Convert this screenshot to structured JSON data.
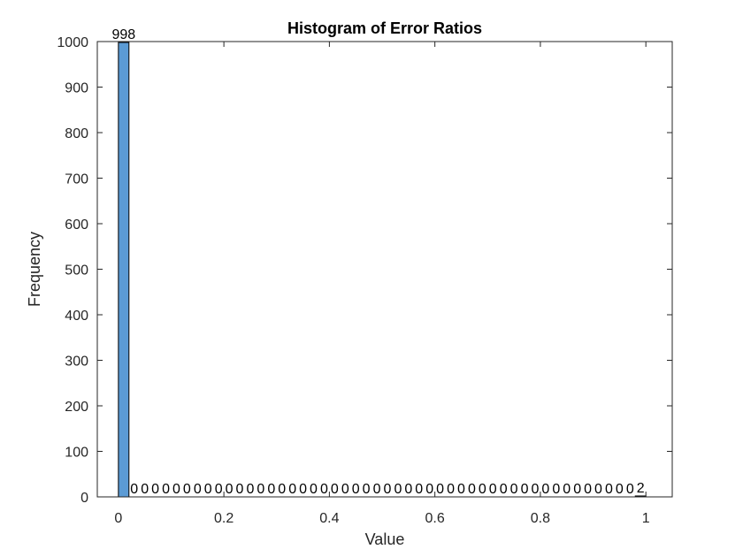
{
  "chart_data": {
    "type": "bar",
    "title": "Histogram of Error Ratios",
    "xlabel": "Value",
    "ylabel": "Frequency",
    "xlim": [
      -0.04,
      1.05
    ],
    "ylim": [
      0,
      1000
    ],
    "xticks": [
      0,
      0.2,
      0.4,
      0.6,
      0.8,
      1
    ],
    "xtick_labels": [
      "0",
      "0.2",
      "0.4",
      "0.6",
      "0.8",
      "1"
    ],
    "yticks": [
      0,
      100,
      200,
      300,
      400,
      500,
      600,
      700,
      800,
      900,
      1000
    ],
    "ytick_labels": [
      "0",
      "100",
      "200",
      "300",
      "400",
      "500",
      "600",
      "700",
      "800",
      "900",
      "1000"
    ],
    "bin_edges": [
      0,
      0.02,
      0.04,
      0.06,
      0.08,
      0.1,
      0.12,
      0.14,
      0.16,
      0.18,
      0.2,
      0.22,
      0.24,
      0.26,
      0.28,
      0.3,
      0.32,
      0.34,
      0.36,
      0.38,
      0.4,
      0.42,
      0.44,
      0.46,
      0.48,
      0.5,
      0.52,
      0.54,
      0.56,
      0.58,
      0.6,
      0.62,
      0.64,
      0.66,
      0.68,
      0.7,
      0.72,
      0.74,
      0.76,
      0.78,
      0.8,
      0.82,
      0.84,
      0.86,
      0.88,
      0.9,
      0.92,
      0.94,
      0.96,
      0.98,
      1
    ],
    "values": [
      998,
      0,
      0,
      0,
      0,
      0,
      0,
      0,
      0,
      0,
      0,
      0,
      0,
      0,
      0,
      0,
      0,
      0,
      0,
      0,
      0,
      0,
      0,
      0,
      0,
      0,
      0,
      0,
      0,
      0,
      0,
      0,
      0,
      0,
      0,
      0,
      0,
      0,
      0,
      0,
      0,
      0,
      0,
      0,
      0,
      0,
      0,
      0,
      0,
      2
    ],
    "bar_labels": [
      "998",
      "0",
      "0",
      "0",
      "0",
      "0",
      "0",
      "0",
      "0",
      "0",
      "0",
      "0",
      "0",
      "0",
      "0",
      "0",
      "0",
      "0",
      "0",
      "0",
      "0",
      "0",
      "0",
      "0",
      "0",
      "0",
      "0",
      "0",
      "0",
      "0",
      "0",
      "0",
      "0",
      "0",
      "0",
      "0",
      "0",
      "0",
      "0",
      "0",
      "0",
      "0",
      "0",
      "0",
      "0",
      "0",
      "0",
      "0",
      "0",
      "2"
    ],
    "grid": false,
    "colors": {
      "bar_fill": "#5b9bd5",
      "bar_edge": "#000000",
      "axis": "#262626"
    }
  }
}
